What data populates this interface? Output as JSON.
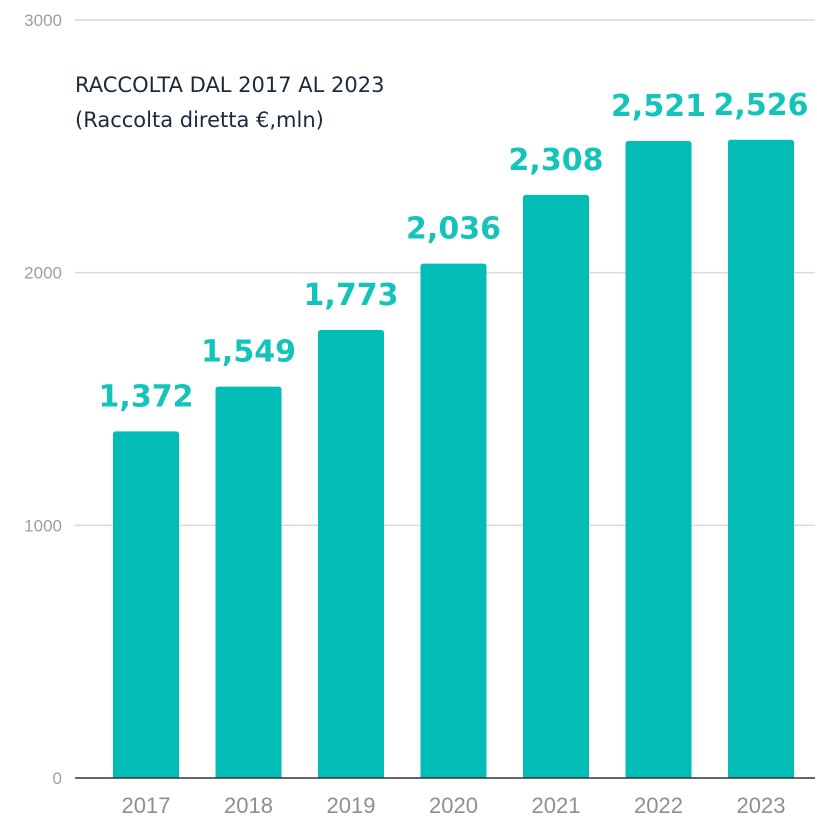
{
  "chart_data": {
    "type": "bar",
    "title": "RACCOLTA DAL 2017 AL 2023",
    "subtitle": "(Raccolta diretta €,mln)",
    "categories": [
      "2017",
      "2018",
      "2019",
      "2020",
      "2021",
      "2022",
      "2023"
    ],
    "values": [
      1372,
      1549,
      1773,
      2036,
      2308,
      2521,
      2526
    ],
    "data_labels": [
      "1,372",
      "1,549",
      "1,773",
      "2,036",
      "2,308",
      "2,521",
      "2,526"
    ],
    "ylim": [
      0,
      3000
    ],
    "yticks": [
      "0",
      "1000",
      "2000",
      "3000"
    ],
    "xlabel": "",
    "ylabel": "",
    "grid": true,
    "legend": "none",
    "colors": {
      "bar": "#02bdb6",
      "label": "#14c4bb",
      "grid": "#d9d9d9",
      "axis": "#333333"
    }
  }
}
